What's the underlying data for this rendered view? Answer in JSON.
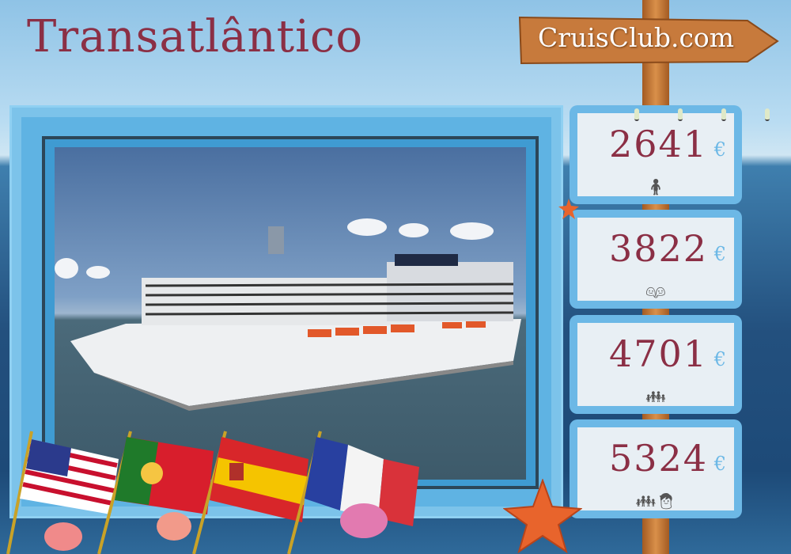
{
  "title": "Transatlântico",
  "brand": "CruisClub.com",
  "currency": "€",
  "prices": [
    {
      "amount": "2641",
      "travelers": "1 adult",
      "icon": "person-icon"
    },
    {
      "amount": "3822",
      "travelers": "2 adults",
      "icon": "couple-icon"
    },
    {
      "amount": "4701",
      "travelers": "2 adults 1 child",
      "icon": "family-3-icon"
    },
    {
      "amount": "5324",
      "travelers": "2 adults 2 children",
      "icon": "family-4-icon"
    }
  ],
  "flags": [
    "United States",
    "Portugal",
    "Spain",
    "France"
  ],
  "colors": {
    "title": "#8b2f45",
    "frame": "#5fb3e3",
    "currency": "#6cb8e6"
  }
}
